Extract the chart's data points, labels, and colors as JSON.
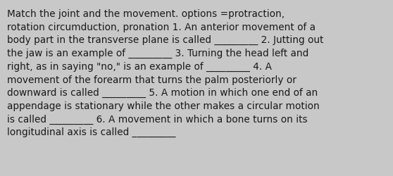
{
  "background_color": "#c8c8c8",
  "text_color": "#1a1a1a",
  "font_size": 9.8,
  "font_family": "DejaVu Sans",
  "text": "Match the joint and the movement. options =protraction,\nrotation circumduction, pronation 1. An anterior movement of a\nbody part in the transverse plane is called _________ 2. Jutting out\nthe jaw is an example of _________ 3. Turning the head left and\nright, as in saying \"no,\" is an example of _________ 4. A\nmovement of the forearm that turns the palm posteriorly or\ndownward is called _________ 5. A motion in which one end of an\nappendage is stationary while the other makes a circular motion\nis called _________ 6. A movement in which a bone turns on its\nlongitudinal axis is called _________"
}
